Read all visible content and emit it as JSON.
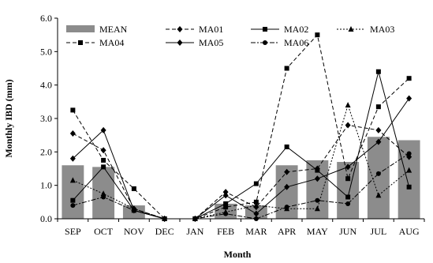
{
  "chart_data": {
    "type": "bar",
    "title": "",
    "xlabel": "Month",
    "ylabel": "Monthly IBD (mm)",
    "ylim": [
      0,
      6
    ],
    "y_ticks": [
      "0.0",
      "1.0",
      "2.0",
      "3.0",
      "4.0",
      "5.0",
      "6.0"
    ],
    "categories": [
      "SEP",
      "OCT",
      "NOV",
      "DEC",
      "JAN",
      "FEB",
      "MAR",
      "APR",
      "MAY",
      "JUN",
      "JUL",
      "AUG"
    ],
    "grid": false,
    "legend_position": "top",
    "bar_series": {
      "name": "MEAN",
      "color": "#8c8c8c",
      "values": [
        1.6,
        1.55,
        0.4,
        0.0,
        0.0,
        0.45,
        0.4,
        1.6,
        1.75,
        1.7,
        2.45,
        2.35
      ]
    },
    "series": [
      {
        "name": "MA01",
        "style": "dashed",
        "marker": "diamond",
        "values": [
          2.55,
          2.05,
          0.3,
          0.0,
          0.0,
          0.8,
          0.35,
          1.4,
          1.5,
          2.8,
          2.65,
          1.85
        ]
      },
      {
        "name": "MA02",
        "style": "solid",
        "marker": "square",
        "values": [
          0.55,
          1.55,
          0.25,
          0.0,
          0.0,
          0.45,
          1.05,
          2.15,
          1.45,
          0.65,
          4.4,
          0.95
        ]
      },
      {
        "name": "MA03",
        "style": "dotted",
        "marker": "triangle",
        "values": [
          1.15,
          0.75,
          0.3,
          0.0,
          0.0,
          0.2,
          0.4,
          0.3,
          0.3,
          3.4,
          0.7,
          1.45
        ]
      },
      {
        "name": "MA04",
        "style": "dashed",
        "marker": "square",
        "values": [
          3.25,
          1.75,
          0.9,
          0.0,
          0.0,
          0.35,
          0.5,
          4.5,
          5.5,
          1.2,
          3.35,
          4.2
        ]
      },
      {
        "name": "MA05",
        "style": "solid",
        "marker": "diamond",
        "values": [
          1.8,
          2.65,
          0.25,
          0.0,
          0.0,
          0.7,
          0.15,
          0.95,
          1.2,
          1.55,
          2.3,
          3.6
        ]
      },
      {
        "name": "MA06",
        "style": "dashdot",
        "marker": "circle",
        "values": [
          0.4,
          0.65,
          0.25,
          0.0,
          0.0,
          0.15,
          0.0,
          0.35,
          0.55,
          0.45,
          1.35,
          1.95
        ]
      }
    ]
  }
}
